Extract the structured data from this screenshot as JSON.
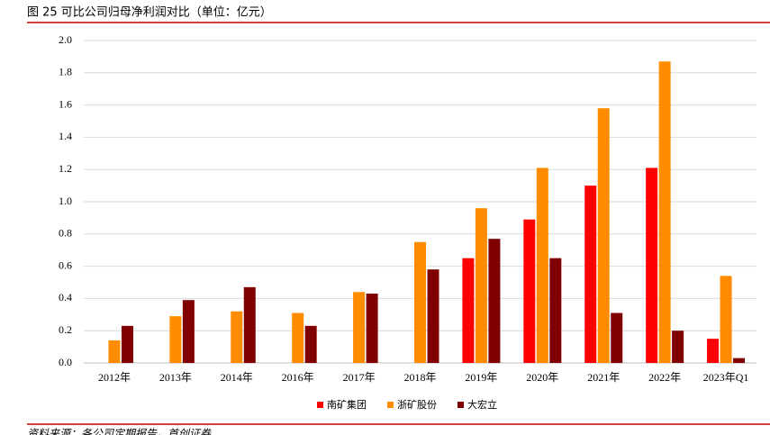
{
  "chart_data": {
    "type": "bar",
    "title": "图 25 可比公司归母净利润对比（单位：亿元）",
    "source": "资料来源：各公司定期报告，首创证券",
    "categories": [
      "2012年",
      "2013年",
      "2014年",
      "2016年",
      "2017年",
      "2018年",
      "2019年",
      "2020年",
      "2021年",
      "2022年",
      "2023年Q1"
    ],
    "series": [
      {
        "name": "南矿集团",
        "color": "#ff0000",
        "values": [
          null,
          null,
          null,
          null,
          null,
          null,
          0.65,
          0.89,
          1.1,
          1.21,
          0.15
        ]
      },
      {
        "name": "浙矿股份",
        "color": "#ff8c00",
        "values": [
          0.14,
          0.29,
          0.32,
          0.31,
          0.44,
          0.75,
          0.96,
          1.21,
          1.58,
          1.87,
          0.54
        ]
      },
      {
        "name": "大宏立",
        "color": "#800000",
        "values": [
          0.23,
          0.39,
          0.47,
          0.23,
          0.43,
          0.58,
          0.77,
          0.65,
          0.31,
          0.2,
          0.03
        ]
      }
    ],
    "ylim": [
      0,
      2.0
    ],
    "yticks": [
      {
        "value": 0,
        "label": "0.0"
      },
      0.2,
      0.4,
      0.6,
      0.8,
      {
        "value": 1.0,
        "label": "1.0"
      },
      1.2,
      1.4,
      1.6,
      1.8,
      {
        "value": 2.0,
        "label": "2.0"
      }
    ],
    "grid": true,
    "legend": "bottom"
  }
}
